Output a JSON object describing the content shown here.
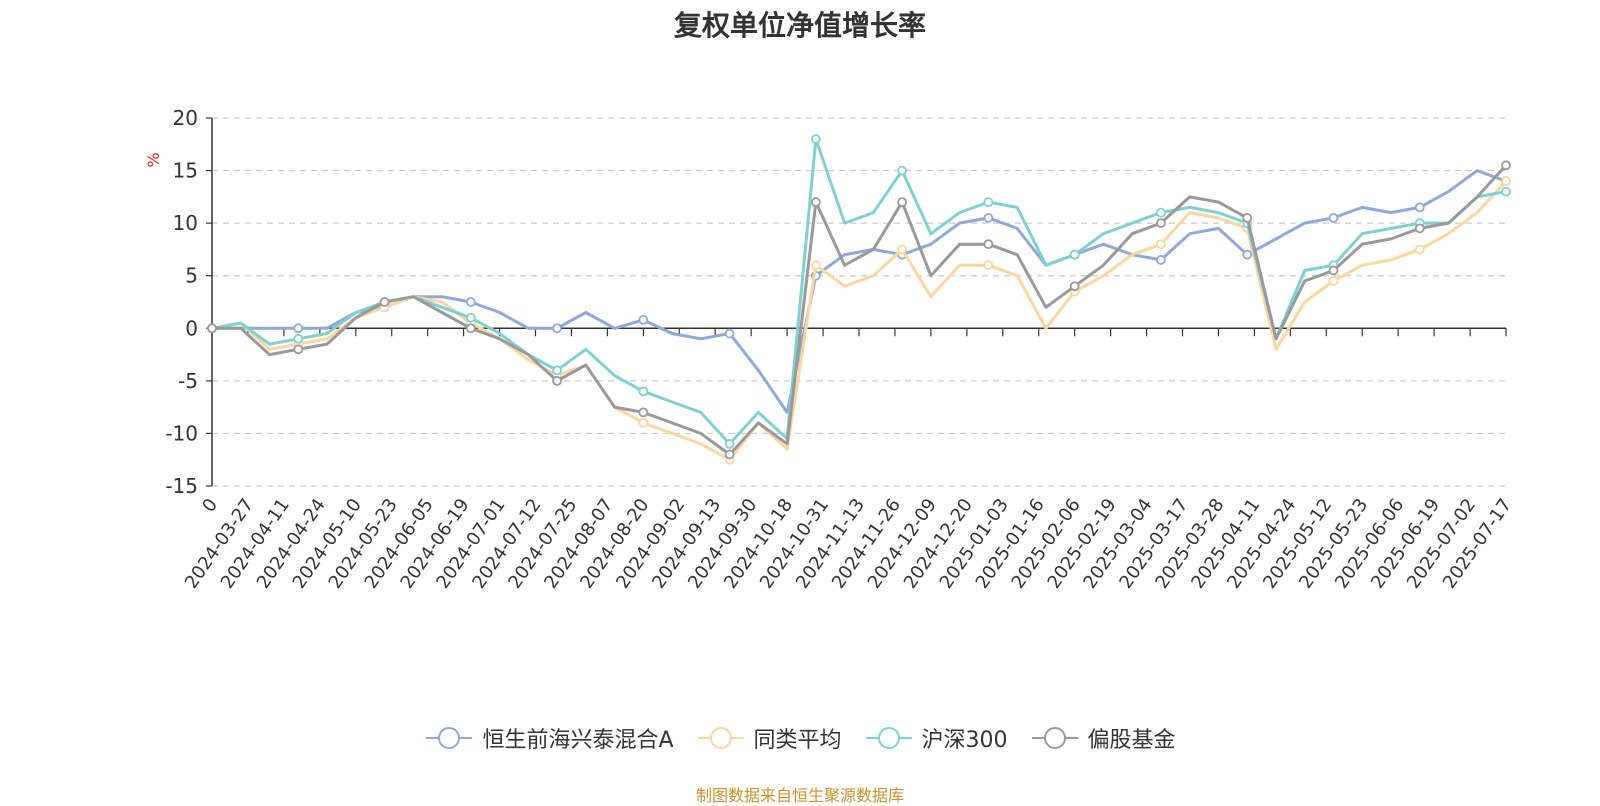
{
  "chart_data": {
    "type": "line",
    "title": "复权单位净值增长率",
    "ylabel": "%",
    "ylim": [
      -15,
      20
    ],
    "yticks": [
      -15,
      -10,
      -5,
      0,
      5,
      10,
      15,
      20
    ],
    "grid": true,
    "legend_position": "bottom",
    "x_tick_labels": [
      "0",
      "2024-03-27",
      "2024-04-11",
      "2024-04-24",
      "2024-05-10",
      "2024-05-23",
      "2024-06-05",
      "2024-06-19",
      "2024-07-01",
      "2024-07-12",
      "2024-07-25",
      "2024-08-07",
      "2024-08-20",
      "2024-09-02",
      "2024-09-13",
      "2024-09-30",
      "2024-10-18",
      "2024-10-31",
      "2024-11-13",
      "2024-11-26",
      "2024-12-09",
      "2024-12-20",
      "2025-01-03",
      "2025-01-16",
      "2025-02-06",
      "2025-02-19",
      "2025-03-04",
      "2025-03-17",
      "2025-03-28",
      "2025-04-11",
      "2025-04-24",
      "2025-05-12",
      "2025-05-23",
      "2025-06-06",
      "2025-06-19",
      "2025-07-02",
      "2025-07-17"
    ],
    "series": [
      {
        "name": "恒生前海兴泰混合A",
        "color": "#8fa8d8",
        "values": [
          0,
          0,
          0,
          0,
          0,
          1.5,
          2,
          3,
          3,
          2.5,
          1.5,
          0,
          0,
          1.5,
          0,
          0.8,
          -0.5,
          -1,
          -0.5,
          -4,
          -8,
          5,
          7,
          7.5,
          7,
          8,
          10,
          10.5,
          9.5,
          6,
          7,
          8,
          7,
          6.5,
          9,
          9.5,
          7,
          8.5,
          10,
          10.5,
          11.5,
          11,
          11.5,
          13,
          15,
          14
        ]
      },
      {
        "name": "同类平均",
        "color": "#fad7a0",
        "values": [
          0,
          0.5,
          -2,
          -1.5,
          -1,
          1,
          2,
          3,
          2.5,
          0.5,
          -1,
          -3,
          -4.5,
          -3.5,
          -7.5,
          -9,
          -10,
          -11,
          -12.5,
          -9,
          -11.5,
          6,
          4,
          5,
          7.5,
          3,
          6,
          6,
          5,
          0,
          3.5,
          5,
          7,
          8,
          11,
          10.5,
          9.5,
          -2,
          2.5,
          4.5,
          6,
          6.5,
          7.5,
          9,
          11,
          14
        ]
      },
      {
        "name": "沪深300",
        "color": "#7fd0d0",
        "values": [
          0,
          0.5,
          -1.5,
          -1,
          -0.5,
          1.5,
          2.5,
          3,
          2,
          1,
          -0.5,
          -2.5,
          -4,
          -2,
          -4.5,
          -6,
          -7,
          -8,
          -11,
          -8,
          -10.5,
          18,
          10,
          11,
          15,
          9,
          11,
          12,
          11.5,
          6,
          7,
          9,
          10,
          11,
          11.5,
          11,
          10,
          -1,
          5.5,
          6,
          9,
          9.5,
          10,
          10,
          12.5,
          13
        ]
      },
      {
        "name": "偏股基金",
        "color": "#999999",
        "values": [
          0,
          0,
          -2.5,
          -2,
          -1.5,
          1,
          2.5,
          3,
          1.5,
          0,
          -1,
          -2.5,
          -5,
          -3.5,
          -7.5,
          -8,
          -9,
          -10,
          -12,
          -9,
          -11,
          12,
          6,
          7.5,
          12,
          5,
          8,
          8,
          7,
          2,
          4,
          6,
          9,
          10,
          12.5,
          12,
          10.5,
          -1,
          4.5,
          5.5,
          8,
          8.5,
          9.5,
          10,
          12.5,
          15.5
        ]
      }
    ]
  },
  "source_note": "制图数据来自恒生聚源数据库"
}
